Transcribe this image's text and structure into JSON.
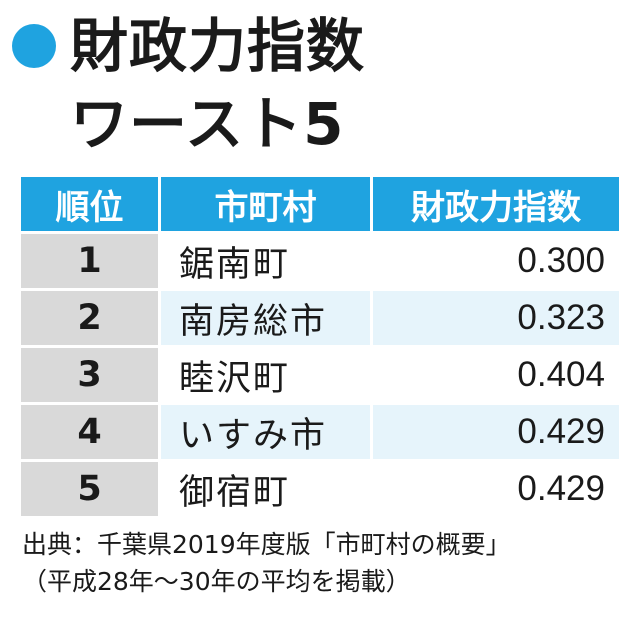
{
  "title": {
    "line1": "財政力指数",
    "line2": "ワースト5",
    "bullet_color": "#1fa3e0"
  },
  "table": {
    "headers": [
      "順位",
      "市町村",
      "財政力指数"
    ],
    "header_color": "#1fa3e0",
    "rows": [
      {
        "rank": "1",
        "name": "鋸南町",
        "value": "0.300"
      },
      {
        "rank": "2",
        "name": "南房総市",
        "value": "0.323"
      },
      {
        "rank": "3",
        "name": "睦沢町",
        "value": "0.404"
      },
      {
        "rank": "4",
        "name": "いすみ市",
        "value": "0.429"
      },
      {
        "rank": "5",
        "name": "御宿町",
        "value": "0.429"
      }
    ]
  },
  "source": {
    "line1": "出典：千葉県2019年度版「市町村の概要」",
    "line2": "（平成28年～30年の平均を掲載）"
  }
}
